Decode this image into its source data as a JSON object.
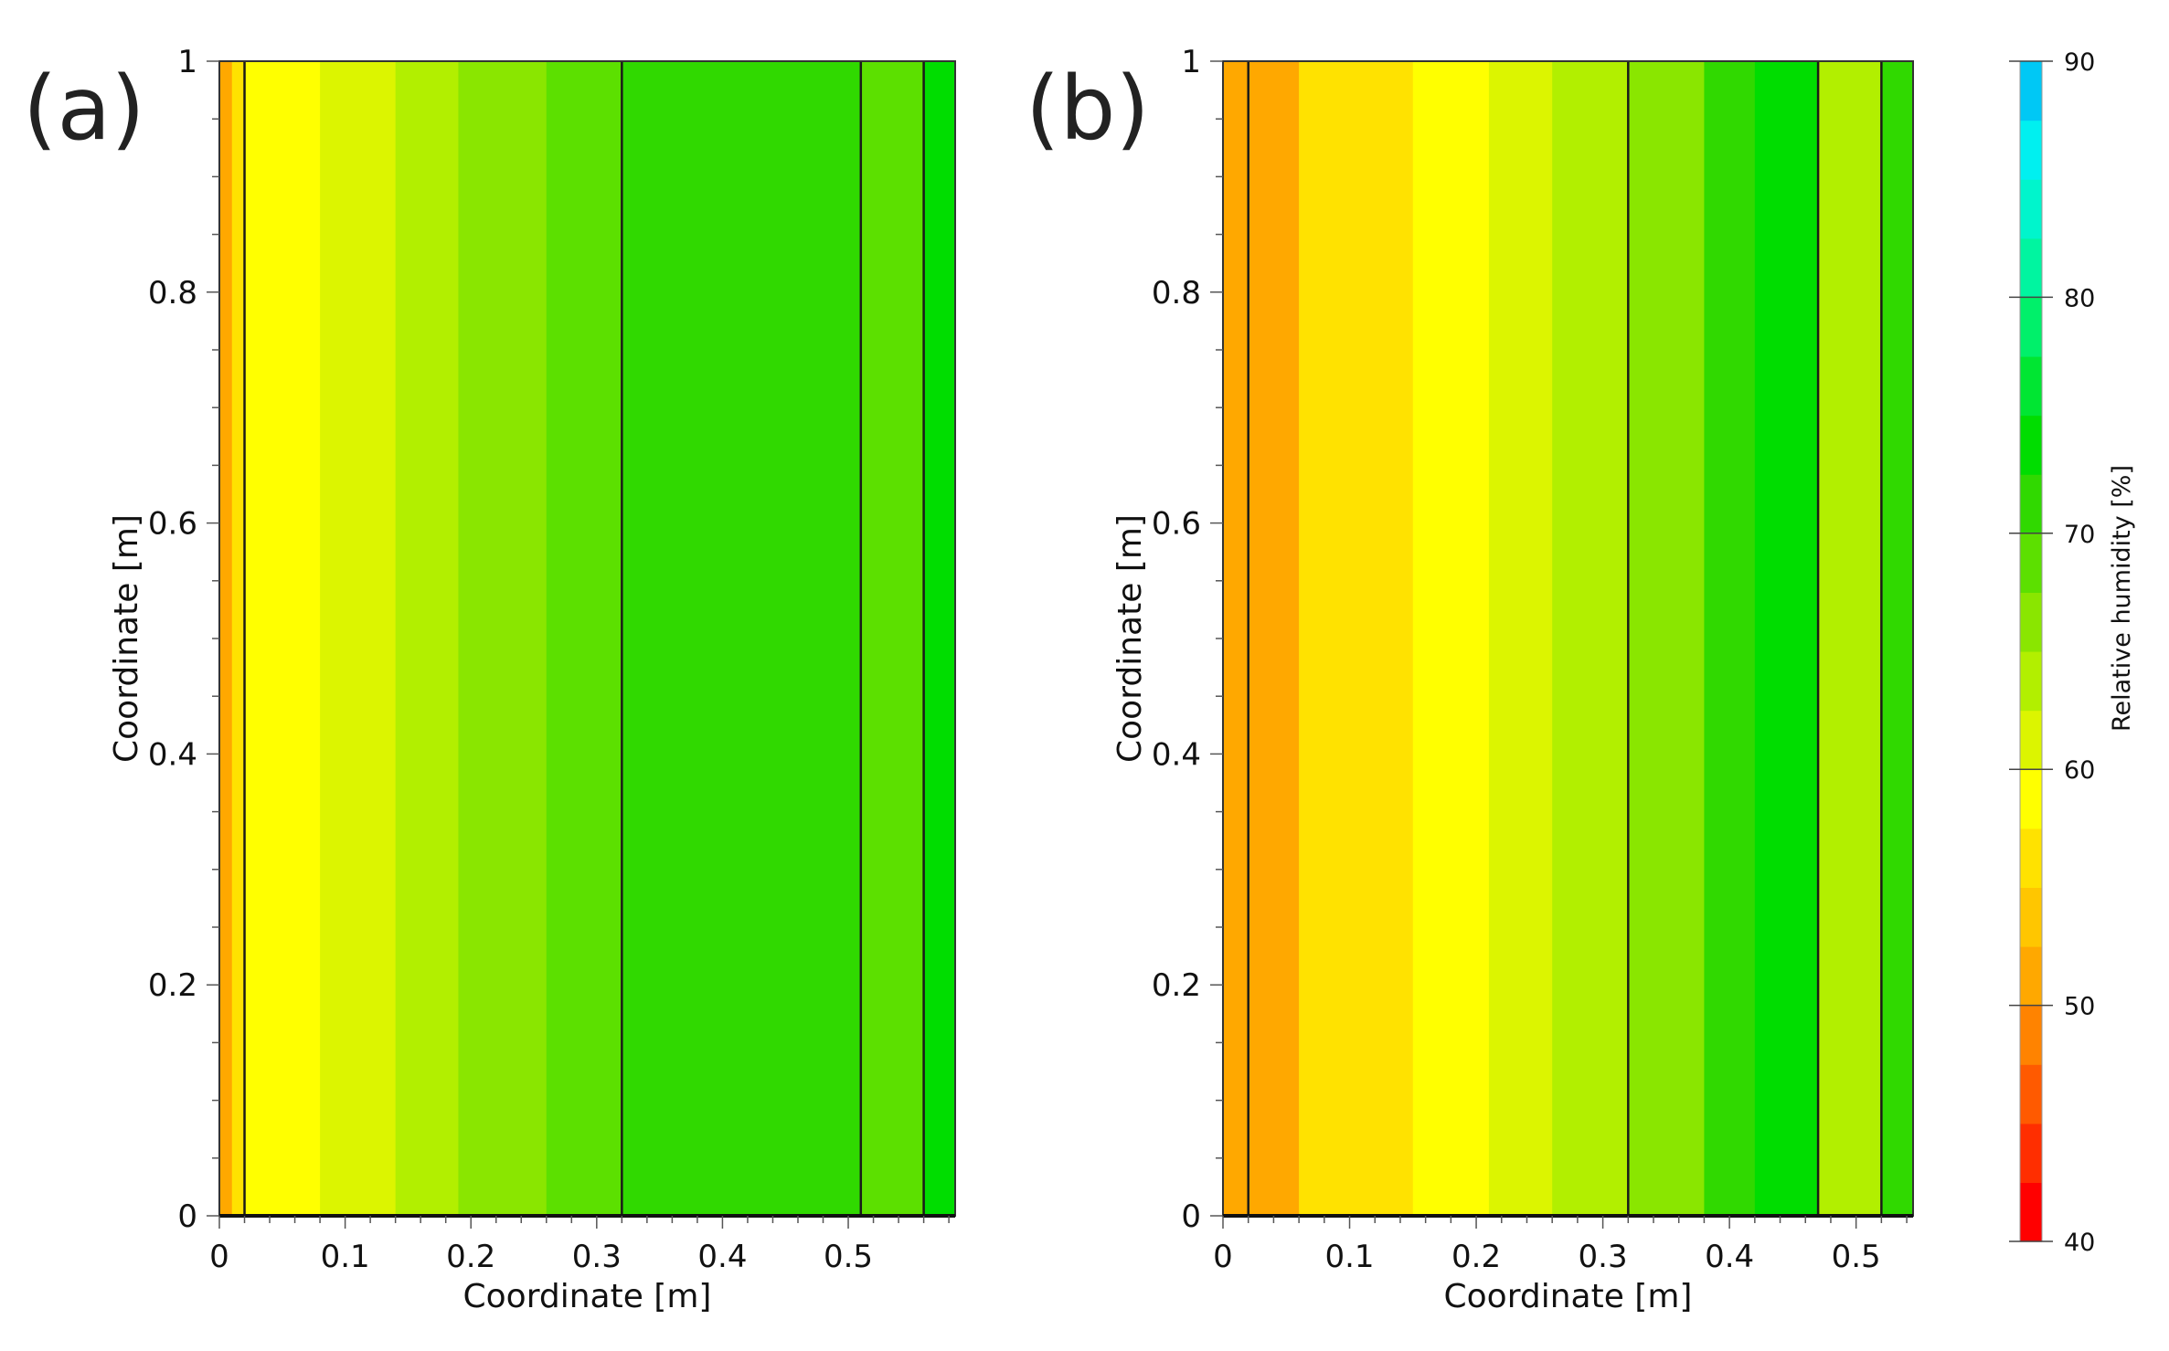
{
  "chart_data": {
    "type": "heatmap",
    "colorbar": {
      "label": "Relative humidity [%]",
      "min": 40,
      "max": 90,
      "step": 2.5,
      "ticks": [
        "40",
        "50",
        "60",
        "70",
        "80",
        "90"
      ],
      "tick_values": [
        40,
        50,
        60,
        70,
        80,
        90
      ],
      "colors": [
        "#ff0000",
        "#ff2e00",
        "#ff5a00",
        "#ff8300",
        "#ffa800",
        "#ffc600",
        "#ffe200",
        "#ffff00",
        "#dcf500",
        "#b2ef00",
        "#8ae600",
        "#5ce000",
        "#30d900",
        "#00dd00",
        "#00e632",
        "#00f06a",
        "#00f5a0",
        "#00f5cc",
        "#00f0f0",
        "#00c8f5",
        "#0096f0",
        "#0064e6",
        "#0032dc"
      ]
    },
    "panels": [
      {
        "label": "(a)",
        "xlabel": "Coordinate [m]",
        "ylabel": "Coordinate [m]",
        "xlim": [
          0,
          0.585
        ],
        "ylim": [
          0,
          1
        ],
        "xticks": [
          "0",
          "0.1",
          "0.2",
          "0.3",
          "0.4",
          "0.5"
        ],
        "xtick_values": [
          0,
          0.1,
          0.2,
          0.3,
          0.4,
          0.5
        ],
        "yticks": [
          "0",
          "0.2",
          "0.4",
          "0.6",
          "0.8",
          "1"
        ],
        "ytick_values": [
          0,
          0.2,
          0.4,
          0.6,
          0.8,
          1
        ],
        "layer_boundaries": [
          0.02,
          0.32,
          0.51,
          0.56
        ],
        "bands": [
          {
            "x0": 0,
            "x1": 0.01,
            "rh": 51
          },
          {
            "x0": 0.01,
            "x1": 0.02,
            "rh": 55
          },
          {
            "x0": 0.02,
            "x1": 0.08,
            "rh": 58
          },
          {
            "x0": 0.08,
            "x1": 0.14,
            "rh": 61
          },
          {
            "x0": 0.14,
            "x1": 0.19,
            "rh": 63
          },
          {
            "x0": 0.19,
            "x1": 0.26,
            "rh": 66
          },
          {
            "x0": 0.26,
            "x1": 0.32,
            "rh": 68
          },
          {
            "x0": 0.32,
            "x1": 0.51,
            "rh": 71
          },
          {
            "x0": 0.51,
            "x1": 0.56,
            "rh": 68
          },
          {
            "x0": 0.56,
            "x1": 0.585,
            "rh": 74
          }
        ]
      },
      {
        "label": "(b)",
        "xlabel": "Coordinate [m]",
        "ylabel": "Coordinate [m]",
        "xlim": [
          0,
          0.545
        ],
        "ylim": [
          0,
          1
        ],
        "xticks": [
          "0",
          "0.1",
          "0.2",
          "0.3",
          "0.4",
          "0.5"
        ],
        "xtick_values": [
          0,
          0.1,
          0.2,
          0.3,
          0.4,
          0.5
        ],
        "yticks": [
          "0",
          "0.2",
          "0.4",
          "0.6",
          "0.8",
          "1"
        ],
        "ytick_values": [
          0,
          0.2,
          0.4,
          0.6,
          0.8,
          1
        ],
        "layer_boundaries": [
          0.02,
          0.32,
          0.47,
          0.52
        ],
        "bands": [
          {
            "x0": 0,
            "x1": 0.02,
            "rh": 51
          },
          {
            "x0": 0.02,
            "x1": 0.06,
            "rh": 52
          },
          {
            "x0": 0.06,
            "x1": 0.15,
            "rh": 55
          },
          {
            "x0": 0.15,
            "x1": 0.21,
            "rh": 58
          },
          {
            "x0": 0.21,
            "x1": 0.26,
            "rh": 61
          },
          {
            "x0": 0.26,
            "x1": 0.32,
            "rh": 63
          },
          {
            "x0": 0.32,
            "x1": 0.38,
            "rh": 67
          },
          {
            "x0": 0.38,
            "x1": 0.42,
            "rh": 71
          },
          {
            "x0": 0.42,
            "x1": 0.47,
            "rh": 74
          },
          {
            "x0": 0.47,
            "x1": 0.52,
            "rh": 64
          },
          {
            "x0": 0.52,
            "x1": 0.545,
            "rh": 71
          }
        ]
      }
    ]
  }
}
